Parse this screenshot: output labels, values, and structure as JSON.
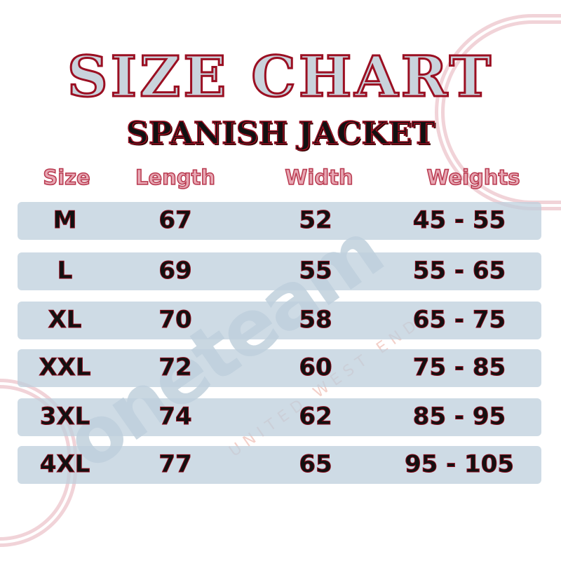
{
  "title": "SIZE CHART",
  "subtitle": "SPANISH JACKET",
  "headers": [
    "Size",
    "Length",
    "Width",
    "Weights"
  ],
  "rows": [
    [
      "M",
      "67",
      "52",
      "45 - 55"
    ],
    [
      "L",
      "69",
      "55",
      "55 - 65"
    ],
    [
      "XL",
      "70",
      "58",
      "65 - 75"
    ],
    [
      "XXL",
      "72",
      "60",
      "75 - 85"
    ],
    [
      "3XL",
      "74",
      "62",
      "85 - 95"
    ],
    [
      "4XL",
      "77",
      "65",
      "95 - 105"
    ]
  ],
  "watermark": {
    "brand": "oneteam",
    "tagline": "UNITED WEST END"
  },
  "colors": {
    "accent": "#9b0f22",
    "row_band": "#becfdc",
    "header": "#e7a7b3"
  }
}
